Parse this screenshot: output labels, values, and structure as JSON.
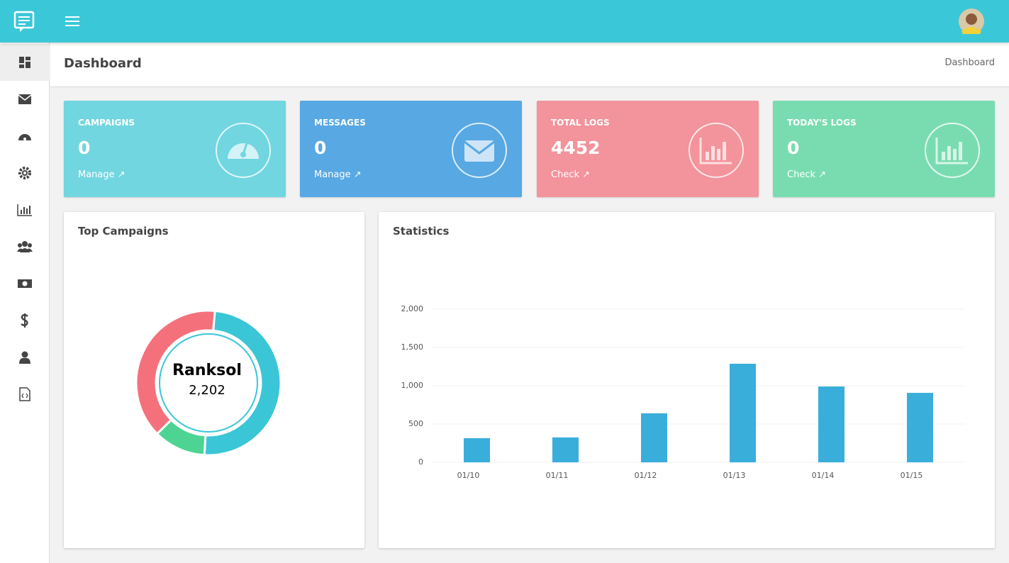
{
  "header": {
    "title": "Dashboard",
    "breadcrumb": "Dashboard"
  },
  "cards": [
    {
      "title": "CAMPAIGNS",
      "value": 0,
      "link": "Manage"
    },
    {
      "title": "MESSAGES",
      "value": 0,
      "link": "Manage"
    },
    {
      "title": "TOTAL LOGS",
      "value": 4452,
      "link": "Check"
    },
    {
      "title": "TODAY'S LOGS",
      "value": 0,
      "link": "Check"
    }
  ],
  "chart_data": [
    {
      "type": "donut",
      "title": "Top Campaigns",
      "categories": [
        "Ranksol",
        null,
        null
      ],
      "values": [
        2202,
        520,
        1730
      ],
      "value_labels": [
        "2,202",
        null,
        null
      ],
      "colors": [
        "#3ac6d6",
        "#4dd493",
        "#f4717c"
      ]
    },
    {
      "type": "bar",
      "title": "Statistics",
      "categories": [
        "01/10",
        "01/11",
        "01/12",
        "01/13",
        "01/14",
        "01/15"
      ],
      "values": [
        315,
        325,
        640,
        1287,
        990,
        907
      ],
      "color": "#3aaedb",
      "ylim": [
        0,
        2000
      ],
      "yticks": [
        0,
        500,
        {
          "value": 1000,
          "label": "1,000"
        },
        {
          "value": 1500,
          "label": "1,500"
        },
        {
          "value": 2000,
          "label": "2,000"
        }
      ],
      "grid": true
    }
  ]
}
